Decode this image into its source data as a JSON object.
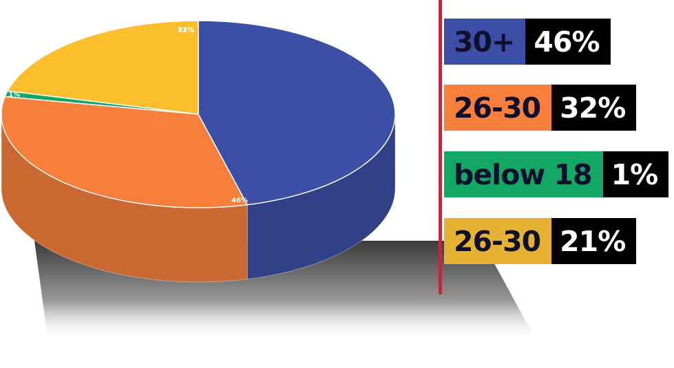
{
  "chart_data": {
    "type": "pie",
    "style": "3d",
    "slices": [
      {
        "category": "30+",
        "value": 46,
        "label": "46%",
        "color": "#3b4fa6"
      },
      {
        "category": "26-30",
        "value": 32,
        "label": "32%",
        "color": "#f57f3b"
      },
      {
        "category": "below 18",
        "value": 1,
        "label": "1%",
        "color": "#13a765"
      },
      {
        "category": "26-30",
        "value": 21,
        "label": "21%",
        "color": "#fbbf2e"
      }
    ],
    "legend": {
      "placement": "right",
      "entries": [
        {
          "category": "30+",
          "value_label": "46%",
          "color": "#3b4fa6"
        },
        {
          "category": "26-30",
          "value_label": "32%",
          "color": "#f57f3b"
        },
        {
          "category": "below 18",
          "value_label": "1%",
          "color": "#13a765"
        },
        {
          "category": "26-30",
          "value_label": "21%",
          "color": "#e6b232"
        }
      ]
    },
    "divider_color": "#e3163c"
  }
}
